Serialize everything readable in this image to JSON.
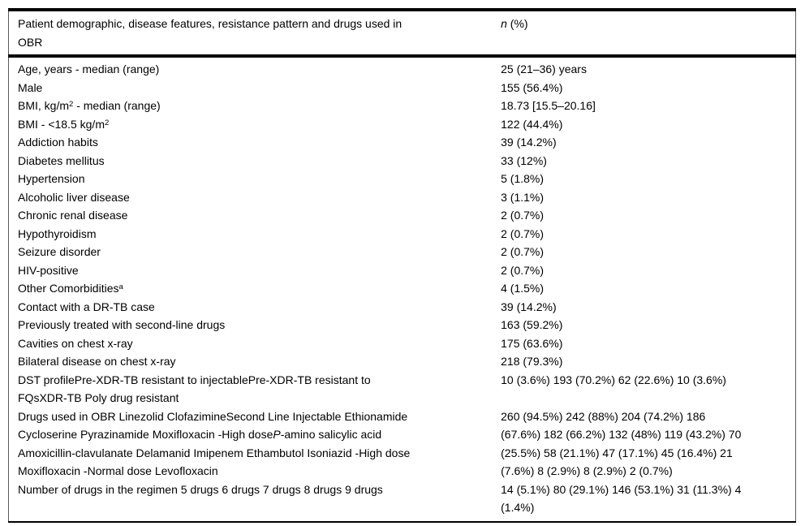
{
  "colors": {
    "text": "#000000",
    "rule_heavy": "#000000",
    "rule_light": "#5a5a5a",
    "background": "#ffffff"
  },
  "table": {
    "header": {
      "label": [
        {
          "t": "Patient demographic, disease features, resistance pattern and drugs used in\nOBR"
        }
      ],
      "value": [
        {
          "t": "n",
          "i": true
        },
        {
          "t": " (%)"
        }
      ]
    },
    "rows": [
      {
        "name": "age-median",
        "label": [
          {
            "t": "Age, years - median (range)"
          }
        ],
        "value": "25 (21–36) years"
      },
      {
        "name": "male",
        "label": [
          {
            "t": "Male"
          }
        ],
        "value": "155 (56.4%)"
      },
      {
        "name": "bmi-median",
        "label": [
          {
            "t": "BMI, kg/m"
          },
          {
            "t": "2",
            "sup": true
          },
          {
            "t": " - median (range)"
          }
        ],
        "value": "18.73 [15.5–20.16]"
      },
      {
        "name": "bmi-under-18-5",
        "label": [
          {
            "t": "BMI - <18.5 kg/m"
          },
          {
            "t": "2",
            "sup": true
          }
        ],
        "value": "122 (44.4%)"
      },
      {
        "name": "addiction-habits",
        "label": [
          {
            "t": "Addiction habits"
          }
        ],
        "value": "39 (14.2%)"
      },
      {
        "name": "diabetes-mellitus",
        "label": [
          {
            "t": "Diabetes mellitus"
          }
        ],
        "value": "33 (12%)"
      },
      {
        "name": "hypertension",
        "label": [
          {
            "t": "Hypertension"
          }
        ],
        "value": "5 (1.8%)"
      },
      {
        "name": "alcoholic-liver-disease",
        "label": [
          {
            "t": "Alcoholic liver disease"
          }
        ],
        "value": "3 (1.1%)"
      },
      {
        "name": "chronic-renal-disease",
        "label": [
          {
            "t": "Chronic renal disease"
          }
        ],
        "value": "2 (0.7%)"
      },
      {
        "name": "hypothyroidism",
        "label": [
          {
            "t": "Hypothyroidism"
          }
        ],
        "value": "2 (0.7%)"
      },
      {
        "name": "seizure-disorder",
        "label": [
          {
            "t": "Seizure disorder"
          }
        ],
        "value": "2 (0.7%)"
      },
      {
        "name": "hiv-positive",
        "label": [
          {
            "t": "HIV-positive"
          }
        ],
        "value": "2 (0.7%)"
      },
      {
        "name": "other-comorbidities",
        "label": [
          {
            "t": "Other Comorbidities"
          },
          {
            "t": "a",
            "sup": true
          }
        ],
        "value": "4 (1.5%)"
      },
      {
        "name": "contact-drtb-case",
        "label": [
          {
            "t": "Contact with a DR-TB case"
          }
        ],
        "value": "39 (14.2%)"
      },
      {
        "name": "previously-treated-second-line",
        "label": [
          {
            "t": "Previously treated with second-line drugs"
          }
        ],
        "value": "163 (59.2%)"
      },
      {
        "name": "cavities-chest-xray",
        "label": [
          {
            "t": "Cavities on chest x-ray"
          }
        ],
        "value": "175 (63.6%)"
      },
      {
        "name": "bilateral-disease-chest-xray",
        "label": [
          {
            "t": "Bilateral disease on chest x-ray"
          }
        ],
        "value": "218 (79.3%)"
      },
      {
        "name": "dst-profile",
        "label": [
          {
            "t": "DST profilePre-XDR-TB resistant to injectablePre-XDR-TB resistant to\nFQsXDR-TB Poly drug resistant"
          }
        ],
        "value": "10 (3.6%) 193 (70.2%) 62 (22.6%) 10 (3.6%)"
      },
      {
        "name": "drugs-used-in-obr",
        "label": [
          {
            "t": "Drugs used in OBR Linezolid ClofazimineSecond Line Injectable Ethionamide\nCycloserine Pyrazinamide Moxifloxacin -High dose"
          },
          {
            "t": "P",
            "i": true
          },
          {
            "t": "-amino salicylic acid\nAmoxicillin-clavulanate Delamanid Imipenem Ethambutol Isoniazid -High dose\nMoxifloxacin -Normal dose Levofloxacin"
          }
        ],
        "value": "260 (94.5%) 242 (88%) 204 (74.2%) 186\n(67.6%) 182 (66.2%) 132 (48%) 119 (43.2%) 70\n(25.5%) 58 (21.1%) 47 (17.1%) 45 (16.4%) 21\n(7.6%) 8 (2.9%) 8 (2.9%) 2 (0.7%)"
      },
      {
        "name": "number-of-drugs-in-regimen",
        "label": [
          {
            "t": "Number of drugs in the regimen 5 drugs 6 drugs 7 drugs 8 drugs 9 drugs"
          }
        ],
        "value": "14 (5.1%) 80 (29.1%) 146 (53.1%) 31 (11.3%) 4\n(1.4%)"
      }
    ]
  }
}
